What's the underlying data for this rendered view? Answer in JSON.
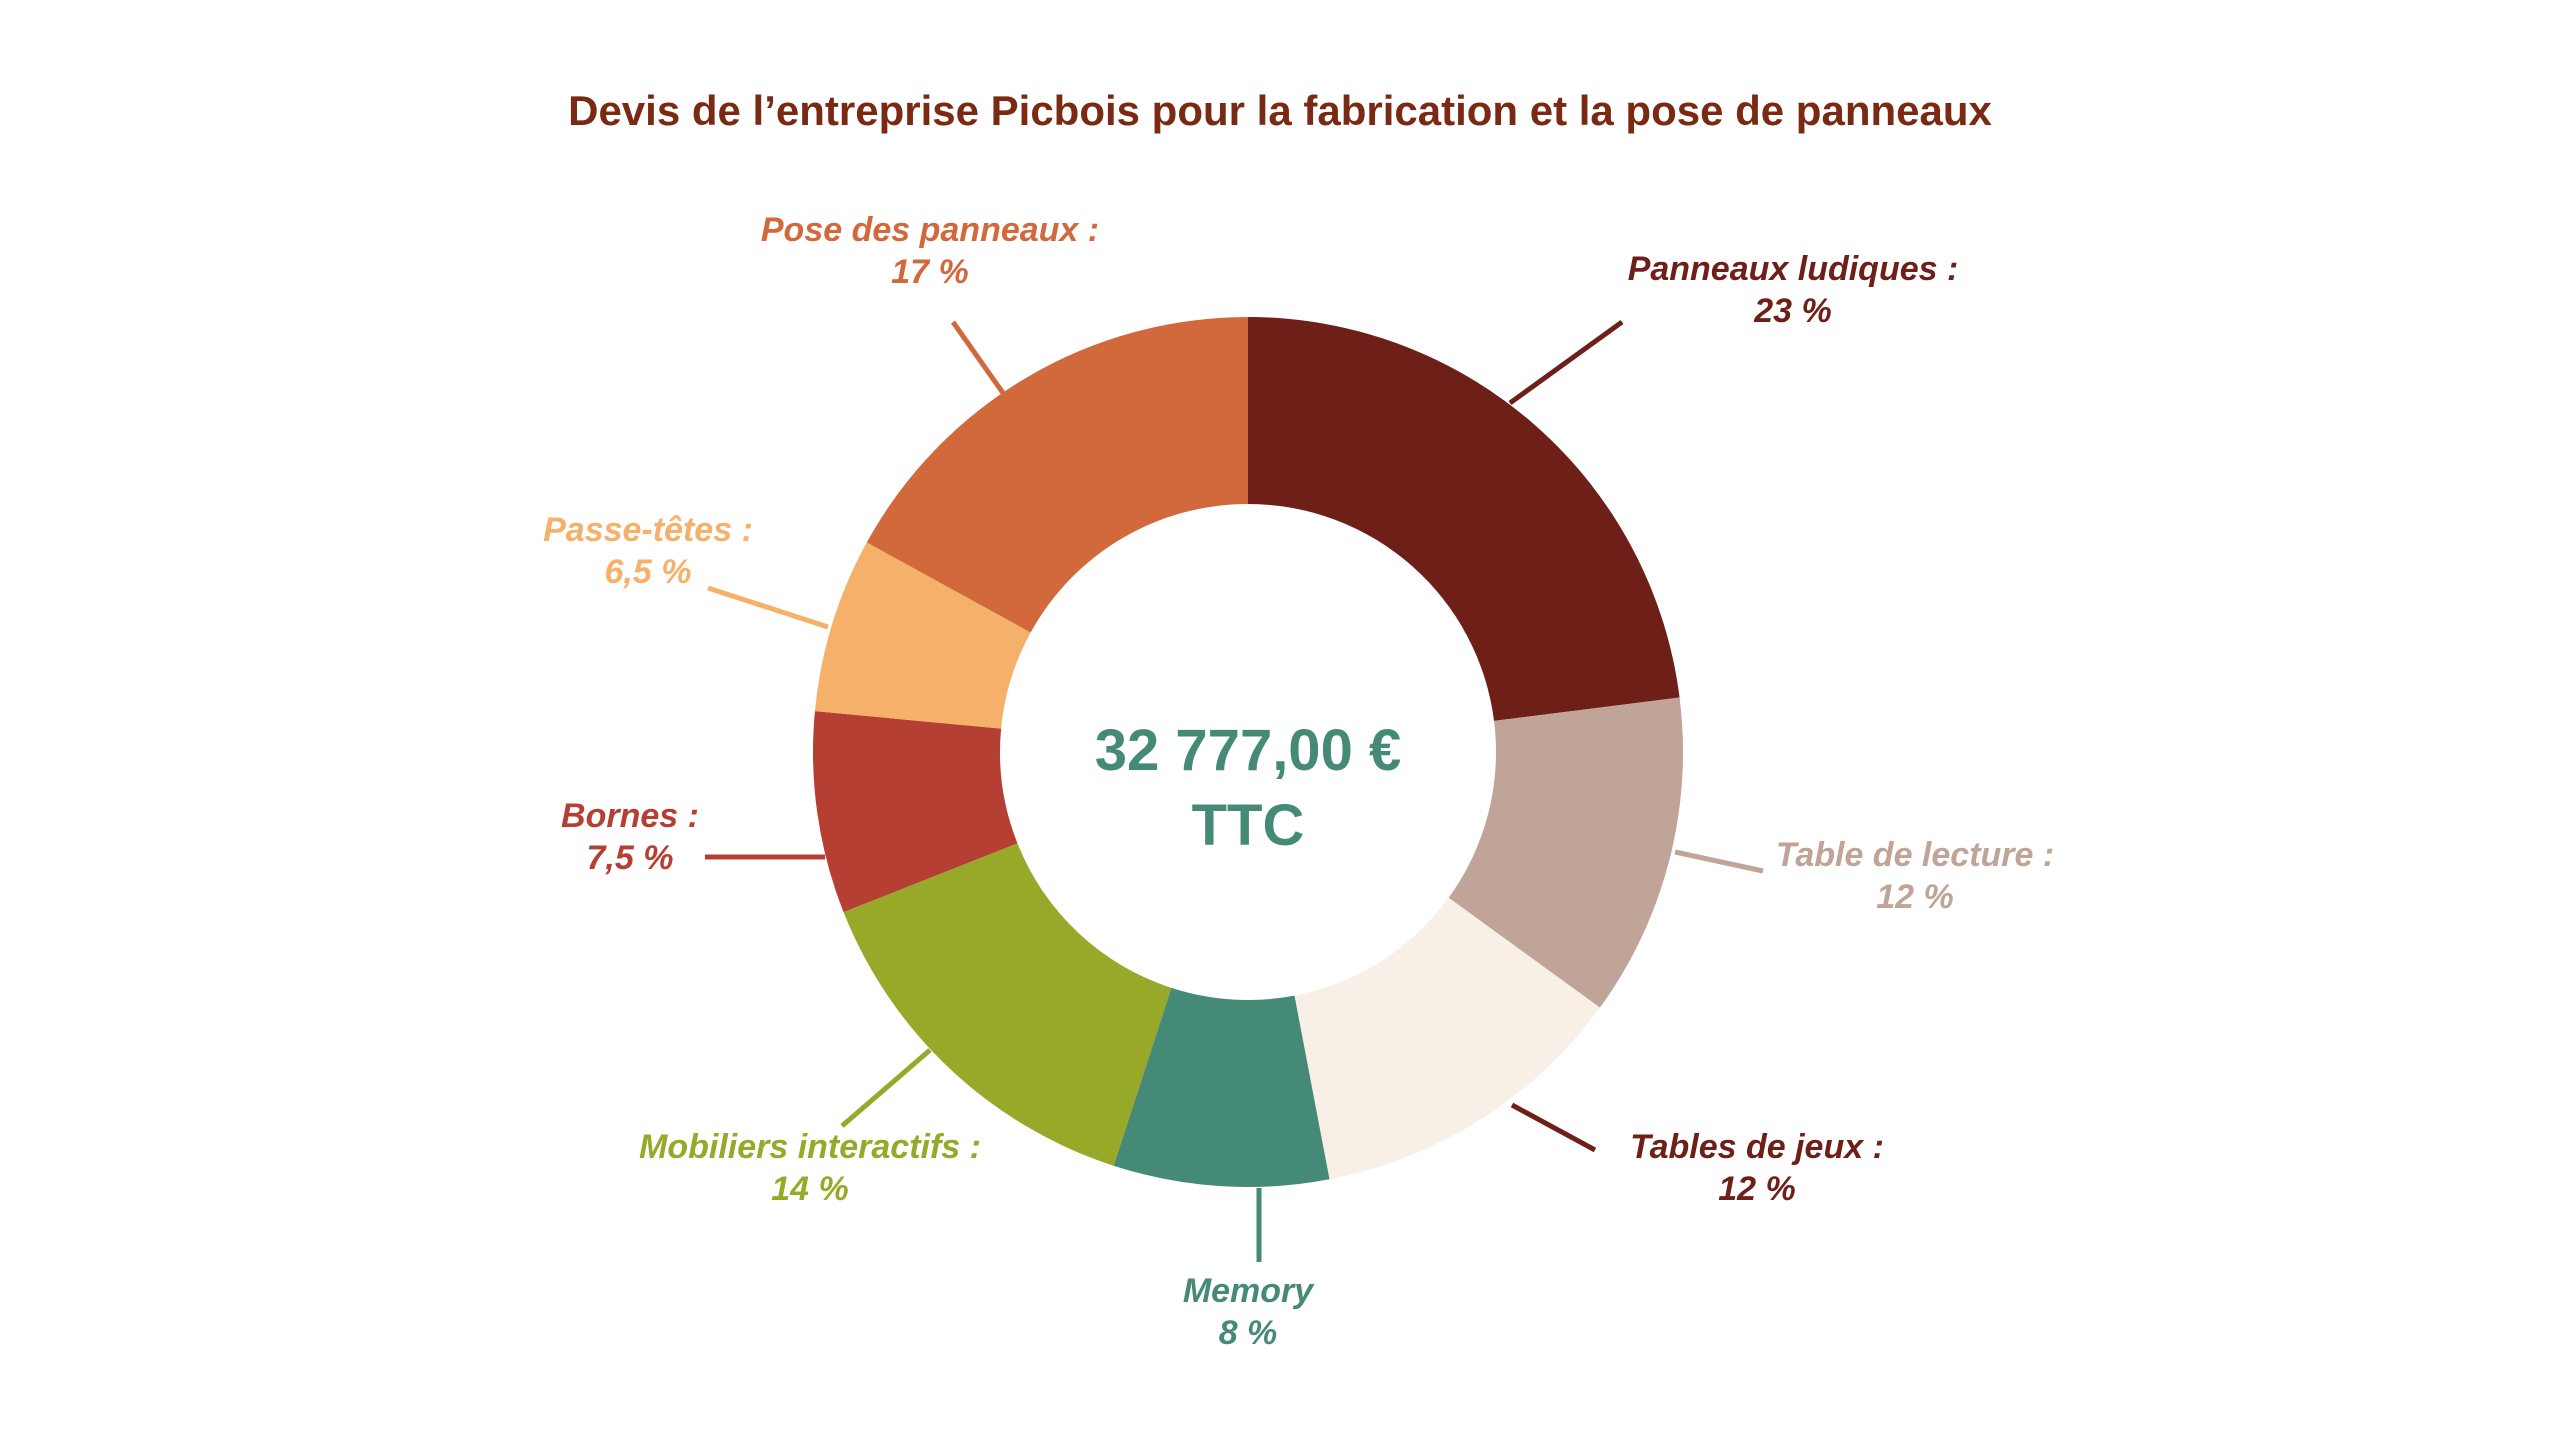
{
  "chart_data": {
    "type": "pie",
    "variant": "donut",
    "title": "Devis de l’entreprise Picbois pour la fabrication et la pose de panneaux",
    "title_color": "#7a2a12",
    "center_label": {
      "line1": "32 777,00 €",
      "line2": "TTC",
      "color": "#458a77"
    },
    "slices": [
      {
        "name": "Panneaux ludiques :",
        "value": 23,
        "value_label": "23 %",
        "color": "#6e1f17",
        "label_color": "#6e1f17"
      },
      {
        "name": "Table de lecture :",
        "value": 12,
        "value_label": "12 %",
        "color": "#bfa497",
        "label_color": "#bfa497"
      },
      {
        "name": "Tables de jeux :",
        "value": 12,
        "value_label": "12 %",
        "color": "#f8f0e6",
        "label_color": "#6e1f17"
      },
      {
        "name": "Memory",
        "value": 8,
        "value_label": "8 %",
        "color": "#458a77",
        "label_color": "#458a77"
      },
      {
        "name": "Mobiliers interactifs :",
        "value": 14,
        "value_label": "14 %",
        "color": "#98a828",
        "label_color": "#98a828"
      },
      {
        "name": "Bornes :",
        "value": 7.5,
        "value_label": "7,5 %",
        "color": "#b53f32",
        "label_color": "#b53f32"
      },
      {
        "name": "Passe-têtes :",
        "value": 6.5,
        "value_label": "6,5 %",
        "color": "#f5b169",
        "label_color": "#f5b169"
      },
      {
        "name": "Pose des panneaux :",
        "value": 17,
        "value_label": "17 %",
        "color": "#d2693c",
        "label_color": "#d2693c"
      }
    ]
  }
}
